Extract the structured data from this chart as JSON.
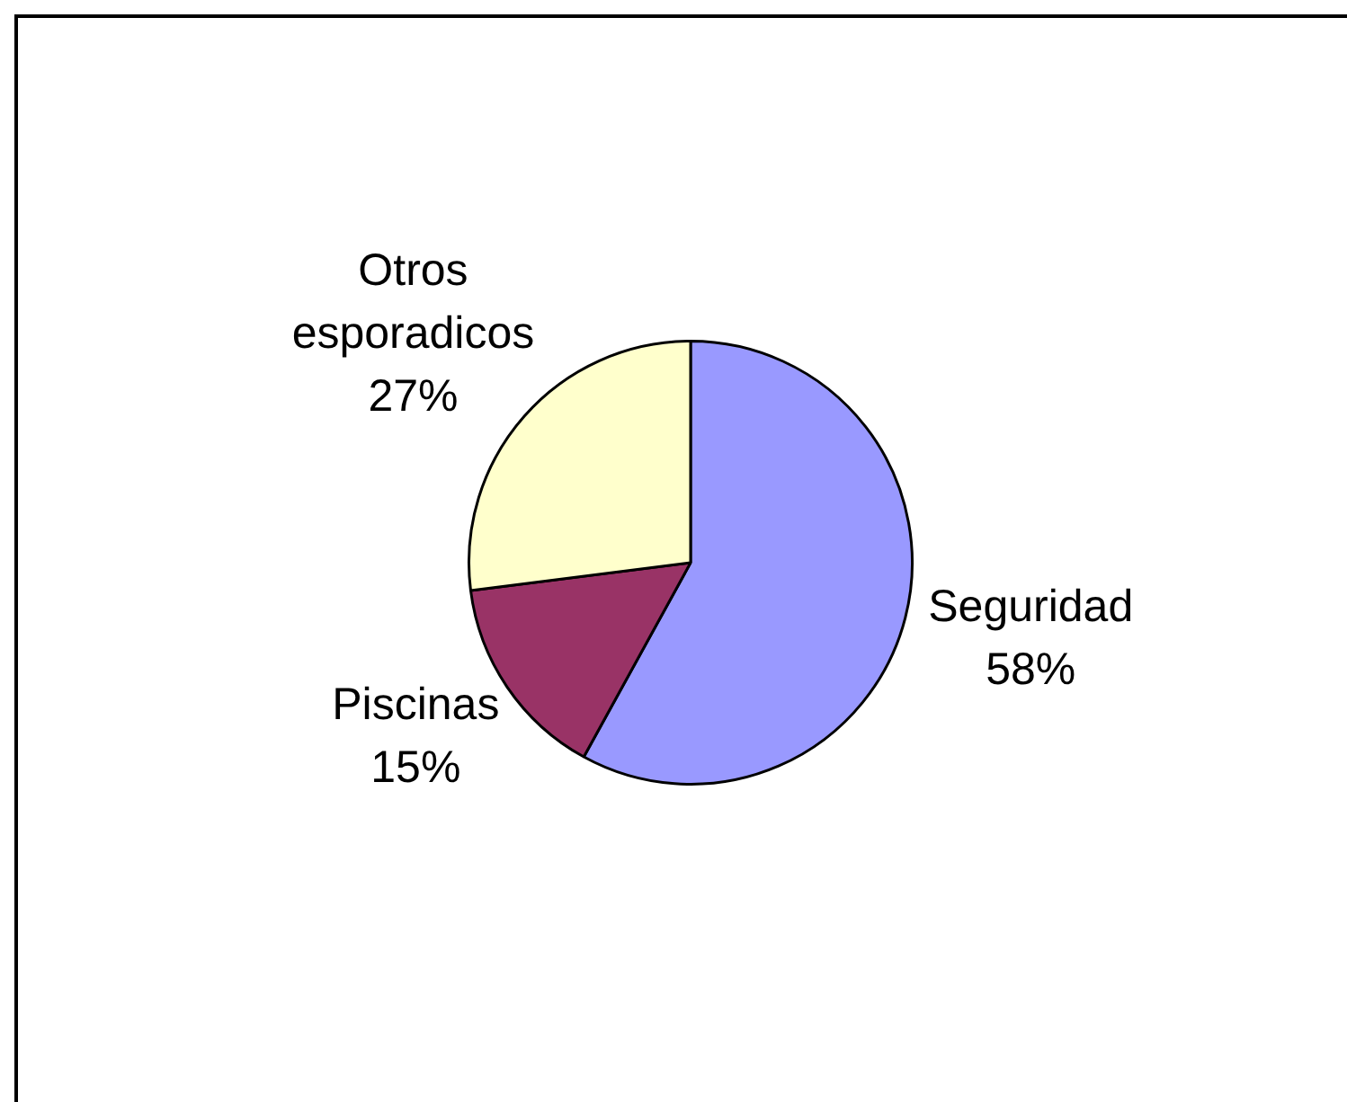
{
  "chart_data": {
    "type": "pie",
    "categories": [
      "Seguridad",
      "Piscinas",
      "Otros esporadicos"
    ],
    "values": [
      58,
      15,
      27
    ],
    "colors": [
      "#9999ff",
      "#993366",
      "#ffffcc"
    ],
    "value_labels": [
      "58%",
      "15%",
      "27%"
    ],
    "legend": false
  }
}
